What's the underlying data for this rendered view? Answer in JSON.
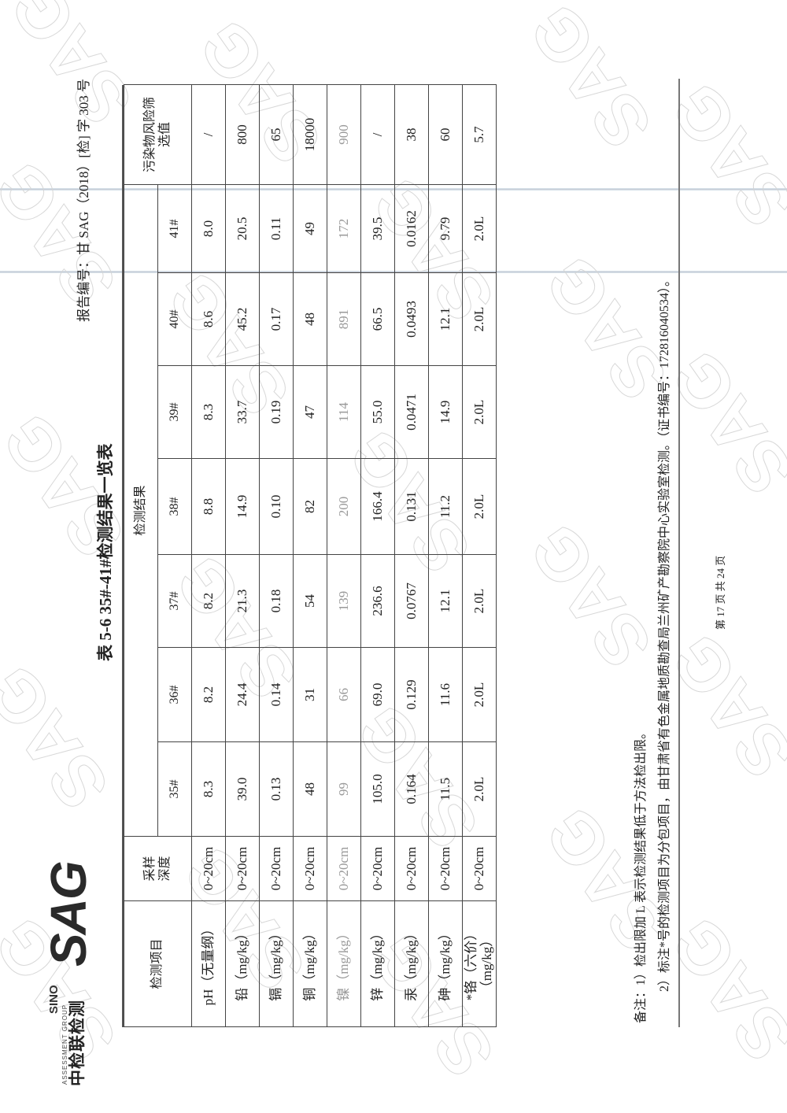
{
  "header": {
    "logo": {
      "cn": "中检联检测",
      "en_top": "SINO",
      "en_sub": "ASSESSMENT GROUP",
      "mark": "SAG"
    },
    "report_no": "报告编号：甘 SAG（2018）[检] 字 303 号"
  },
  "title": "表 5-6   35#-41#检测结果一览表",
  "table": {
    "col_item": "检测项目",
    "col_depth": "采样深度",
    "col_results": "检测结果",
    "col_screen": "污染物风险筛选值",
    "samples": [
      "35#",
      "36#",
      "37#",
      "38#",
      "39#",
      "40#",
      "41#"
    ],
    "rows": [
      {
        "item": "pH（无量纲）",
        "depth": "0~20cm",
        "values": [
          "8.3",
          "8.2",
          "8.2",
          "8.8",
          "8.3",
          "8.6",
          "8.0"
        ],
        "screen": "/"
      },
      {
        "item": "铅（mg/kg）",
        "depth": "0~20cm",
        "values": [
          "39.0",
          "24.4",
          "21.3",
          "14.9",
          "33.7",
          "45.2",
          "20.5"
        ],
        "screen": "800"
      },
      {
        "item": "镉（mg/kg）",
        "depth": "0~20cm",
        "values": [
          "0.13",
          "0.14",
          "0.18",
          "0.10",
          "0.19",
          "0.17",
          "0.11"
        ],
        "screen": "65"
      },
      {
        "item": "铜（mg/kg）",
        "depth": "0~20cm",
        "values": [
          "48",
          "31",
          "54",
          "82",
          "47",
          "48",
          "49"
        ],
        "screen": "18000"
      },
      {
        "item": "镍（mg/kg）",
        "depth": "0~20cm",
        "values": [
          "99",
          "66",
          "139",
          "200",
          "114",
          "891",
          "172"
        ],
        "screen": "900"
      },
      {
        "item": "锌（mg/kg）",
        "depth": "0~20cm",
        "values": [
          "105.0",
          "69.0",
          "236.6",
          "166.4",
          "55.0",
          "66.5",
          "39.5"
        ],
        "screen": "/"
      },
      {
        "item": "汞（mg/kg）",
        "depth": "0~20cm",
        "values": [
          "0.164",
          "0.129",
          "0.0767",
          "0.131",
          "0.0471",
          "0.0493",
          "0.0162"
        ],
        "screen": "38"
      },
      {
        "item": "砷（mg/kg）",
        "depth": "0~20cm",
        "values": [
          "11.5",
          "11.6",
          "12.1",
          "11.2",
          "14.9",
          "12.1",
          "9.79"
        ],
        "screen": "60"
      },
      {
        "item": "*铬（六价）（mg/kg）",
        "depth": "0~20cm",
        "values": [
          "2.0L",
          "2.0L",
          "2.0L",
          "2.0L",
          "2.0L",
          "2.0L",
          "2.0L"
        ],
        "screen": "5.7"
      }
    ]
  },
  "notes": {
    "line1": "备注：1）检出限加 L 表示检测结果低于方法检出限。",
    "line2": "2）标注*号的检测项目为分包项目，由甘肃省有色金属地质勘查局兰州矿产勘察院中心实验室检测。（证书编号：172816040534）。"
  },
  "footer": {
    "page": "第 17 页 共 24 页"
  },
  "watermark": "SAG"
}
